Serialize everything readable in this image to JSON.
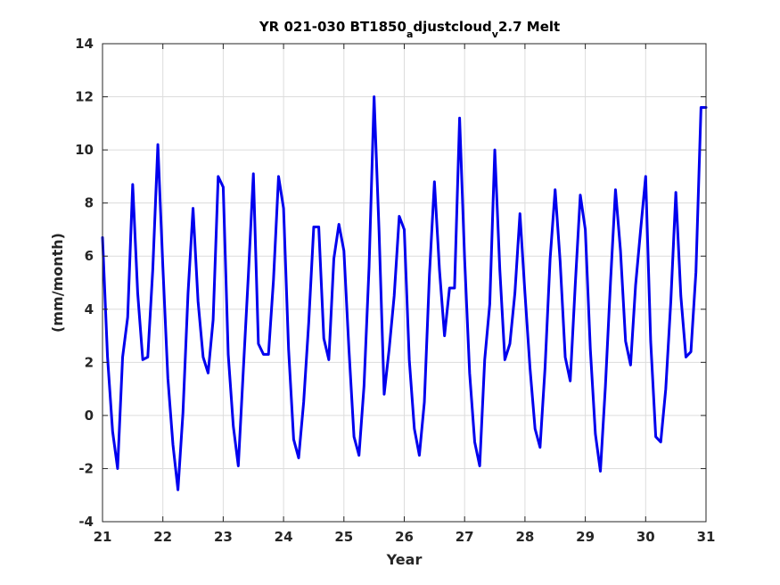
{
  "chart_data": {
    "type": "line",
    "title": {
      "parts": [
        {
          "text": "YR 021-030 BT1850",
          "sub": false
        },
        {
          "text": "a",
          "sub": true
        },
        {
          "text": "djustcloud",
          "sub": false
        },
        {
          "text": "v",
          "sub": true
        },
        {
          "text": "2.7 Melt",
          "sub": false
        }
      ]
    },
    "xlabel": "Year",
    "ylabel": "(mm/month)",
    "xlim": [
      21,
      31
    ],
    "ylim": [
      -4,
      14
    ],
    "xticks": [
      21,
      22,
      23,
      24,
      25,
      26,
      27,
      28,
      29,
      30,
      31
    ],
    "yticks": [
      -4,
      -2,
      0,
      2,
      4,
      6,
      8,
      10,
      12,
      14
    ],
    "grid": true,
    "line_color": "#0000ee",
    "series": [
      {
        "x": [
          21.0,
          21.083,
          21.167,
          21.25,
          21.333,
          21.417,
          21.5,
          21.583,
          21.667,
          21.75,
          21.833,
          21.917,
          22.0,
          22.083,
          22.167,
          22.25,
          22.333,
          22.417,
          22.5,
          22.583,
          22.667,
          22.75,
          22.833,
          22.917,
          23.0,
          23.083,
          23.167,
          23.25,
          23.333,
          23.417,
          23.5,
          23.583,
          23.667,
          23.75,
          23.833,
          23.917,
          24.0,
          24.083,
          24.167,
          24.25,
          24.333,
          24.417,
          24.5,
          24.583,
          24.667,
          24.75,
          24.833,
          24.917,
          25.0,
          25.083,
          25.167,
          25.25,
          25.333,
          25.417,
          25.5,
          25.583,
          25.667,
          25.75,
          25.833,
          25.917,
          26.0,
          26.083,
          26.167,
          26.25,
          26.333,
          26.417,
          26.5,
          26.583,
          26.667,
          26.75,
          26.833,
          26.917,
          27.0,
          27.083,
          27.167,
          27.25,
          27.333,
          27.417,
          27.5,
          27.583,
          27.667,
          27.75,
          27.833,
          27.917,
          28.0,
          28.083,
          28.167,
          28.25,
          28.333,
          28.417,
          28.5,
          28.583,
          28.667,
          28.75,
          28.833,
          28.917,
          29.0,
          29.083,
          29.167,
          29.25,
          29.333,
          29.417,
          29.5,
          29.583,
          29.667,
          29.75,
          29.833,
          29.917,
          30.0,
          30.083,
          30.167,
          30.25,
          30.333,
          30.417,
          30.5,
          30.583,
          30.667,
          30.75,
          30.833,
          30.917,
          31.0
        ],
        "y": [
          6.7,
          2.2,
          -0.6,
          -2.0,
          2.2,
          3.7,
          8.7,
          4.6,
          2.1,
          2.2,
          5.5,
          10.2,
          5.6,
          1.4,
          -1.1,
          -2.8,
          0.1,
          4.6,
          7.8,
          4.3,
          2.2,
          1.6,
          3.6,
          9.0,
          8.6,
          2.3,
          -0.4,
          -1.9,
          1.7,
          5.3,
          9.1,
          2.7,
          2.3,
          2.3,
          5.1,
          9.0,
          7.8,
          2.5,
          -0.9,
          -1.6,
          0.5,
          3.5,
          7.1,
          7.1,
          2.9,
          2.1,
          5.9,
          7.2,
          6.2,
          2.5,
          -0.8,
          -1.5,
          1.1,
          5.6,
          12.0,
          6.9,
          0.8,
          2.5,
          4.5,
          7.5,
          7.0,
          2.1,
          -0.5,
          -1.5,
          0.5,
          5.3,
          8.8,
          5.5,
          3.0,
          4.8,
          4.8,
          11.2,
          5.9,
          1.6,
          -1.0,
          -1.9,
          2.1,
          4.2,
          10.0,
          5.5,
          2.1,
          2.7,
          4.6,
          7.6,
          4.6,
          1.8,
          -0.5,
          -1.2,
          1.8,
          5.9,
          8.5,
          5.8,
          2.2,
          1.3,
          4.9,
          8.3,
          7.0,
          2.5,
          -0.7,
          -2.1,
          1.1,
          5.0,
          8.5,
          6.2,
          2.8,
          1.9,
          4.9,
          7.0,
          9.0,
          2.8,
          -0.8,
          -1.0,
          1.0,
          4.3,
          8.4,
          4.5,
          2.2,
          2.4,
          5.4,
          11.6,
          11.6
        ]
      }
    ]
  }
}
